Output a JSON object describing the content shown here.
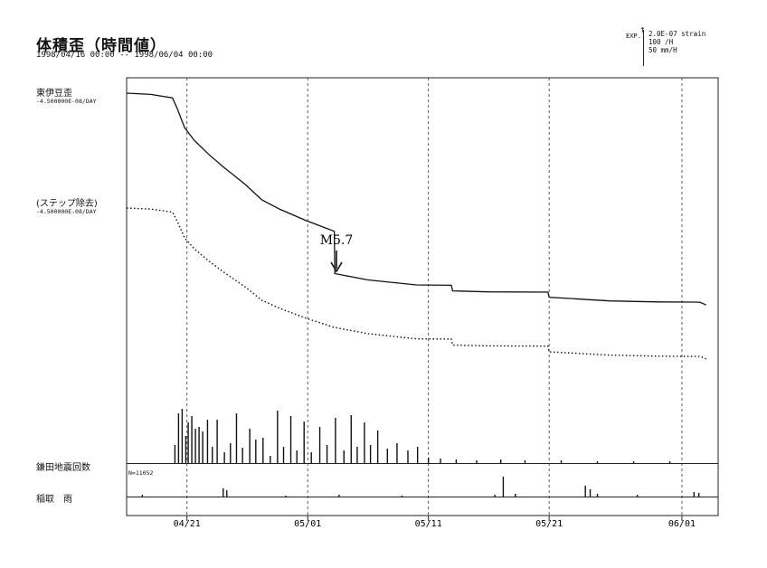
{
  "header": {
    "title": "体積歪（時間値）",
    "period": "1998/04/16 00:00 -- 1998/06/04 00:00",
    "exp_label": "EXP.",
    "exp_lines": [
      "2.0E-07 strain",
      "100 /H",
      "50 mm/H"
    ]
  },
  "labels": {
    "strain_name": "東伊豆歪",
    "strain_rate": "-4.500000E-08/DAY",
    "corrected_name": "(ステップ除去)",
    "corrected_rate": "-4.500000E-08/DAY",
    "quake_name": "鎌田地震回数",
    "quake_count": "N=11052",
    "rain_name": "稲取　雨"
  },
  "chart_data": {
    "type": "line",
    "x_range": [
      "1998/04/16 00:00",
      "1998/06/04 00:00"
    ],
    "x_ticks": [
      "04/21",
      "05/01",
      "05/11",
      "05/21",
      "06/01"
    ],
    "grid": "vertical dashed lines at ticks",
    "annotation": {
      "label": "M5.7",
      "x": "05/03"
    },
    "series": [
      {
        "name": "東伊豆歪",
        "style": "solid",
        "x": [
          0,
          2.0,
          3.8,
          4.2,
          4.8,
          5.6,
          6.8,
          8.0,
          9.8,
          11.2,
          12.7,
          14.8,
          17.2,
          17.25,
          20,
          24,
          26.9,
          27,
          30,
          34.9,
          35,
          40,
          44,
          47.5,
          48
        ],
        "y": [
          100,
          99.6,
          98.5,
          95,
          89,
          85,
          80.5,
          76.5,
          71,
          66,
          63,
          59.5,
          56,
          42.5,
          40.5,
          38.9,
          38.8,
          37,
          36.7,
          36.6,
          35,
          33.8,
          33.5,
          33.4,
          32.5
        ]
      },
      {
        "name": "(ステップ除去)",
        "style": "dotted",
        "x": [
          0,
          2.0,
          3.8,
          4.2,
          4.8,
          5.6,
          6.8,
          8.0,
          9.8,
          11.2,
          12.7,
          14.8,
          17.2,
          20,
          24,
          26.9,
          27,
          30,
          34.9,
          35,
          40,
          44,
          47.5,
          48
        ],
        "y": [
          100,
          99.6,
          98.5,
          95,
          89,
          85,
          80.5,
          76.5,
          71,
          66,
          63,
          59.5,
          56,
          53.7,
          51.8,
          51.7,
          49.5,
          49.2,
          49.1,
          47,
          45.8,
          45.4,
          45.3,
          44.4
        ]
      },
      {
        "name": "鎌田地震回数",
        "style": "bars",
        "x": [
          4.0,
          4.3,
          4.6,
          4.9,
          5.1,
          5.4,
          5.7,
          6.0,
          6.3,
          6.7,
          7.1,
          7.5,
          8.1,
          8.6,
          9.1,
          9.6,
          10.2,
          10.7,
          11.3,
          11.9,
          12.5,
          13.0,
          13.6,
          14.1,
          14.7,
          15.3,
          16.0,
          16.6,
          17.3,
          18.0,
          18.6,
          19.1,
          19.7,
          20.2,
          20.8,
          21.6,
          22.4,
          23.3,
          24.1,
          25.0,
          26.0,
          27.3,
          29.0,
          31.0,
          33.0,
          36.0,
          39.0,
          42.0,
          45.0
        ],
        "y": [
          20,
          55,
          60,
          30,
          45,
          52,
          38,
          40,
          35,
          48,
          18,
          48,
          12,
          22,
          55,
          17,
          38,
          26,
          28,
          8,
          58,
          18,
          52,
          14,
          46,
          12,
          40,
          20,
          50,
          14,
          53,
          18,
          45,
          20,
          36,
          16,
          22,
          14,
          18,
          6,
          5,
          4,
          3,
          4,
          3,
          3,
          2,
          2,
          2
        ]
      },
      {
        "name": "稲取　雨",
        "style": "bars",
        "x": [
          1.3,
          8.0,
          8.3,
          13.2,
          17.6,
          22.8,
          30.5,
          31.2,
          32.2,
          38.0,
          38.4,
          39.0,
          42.3,
          47.0,
          47.4
        ],
        "y": [
          2,
          9,
          7,
          1,
          2,
          1,
          2,
          22,
          3,
          12,
          8,
          3,
          2,
          5,
          4
        ]
      }
    ]
  }
}
